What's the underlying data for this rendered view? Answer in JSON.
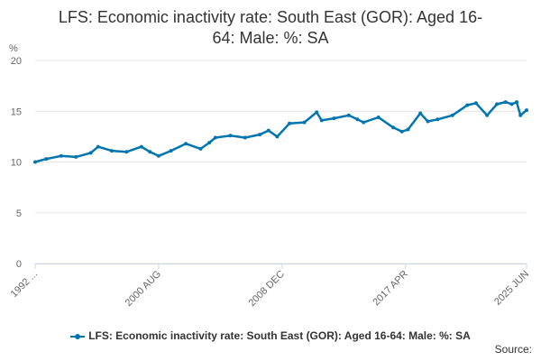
{
  "chart_data": {
    "type": "line",
    "title": "LFS: Economic inactivity rate: South East (GOR): Aged 16-64: Male: %: SA",
    "title_lines": [
      "LFS: Economic inactivity rate: South East (GOR): Aged 16-",
      "64: Male: %: SA"
    ],
    "ylabel": "%",
    "xlabel": "",
    "ylim": [
      0,
      20
    ],
    "yticks": [
      "0",
      "5",
      "10",
      "15",
      "20"
    ],
    "x_tick_labels": [
      "1992 ...",
      "2000 AUG",
      "2008 DEC",
      "2017 APR",
      "2025 JUN"
    ],
    "x_tick_dates": [
      "1992-04",
      "2000-08",
      "2008-12",
      "2017-04",
      "2025-06"
    ],
    "grid": true,
    "legend_position": "bottom",
    "color": "#0075b0",
    "series": [
      {
        "name": "LFS: Economic inactivity rate: South East (GOR): Aged 16-64: Male: %: SA",
        "x": [
          "1992-04",
          "1993-01",
          "1994-01",
          "1995-01",
          "1996-01",
          "1996-07",
          "1997-06",
          "1998-06",
          "1999-06",
          "2000-01",
          "2000-08",
          "2001-06",
          "2002-06",
          "2003-06",
          "2004-01",
          "2004-06",
          "2005-06",
          "2006-06",
          "2007-06",
          "2008-01",
          "2008-08",
          "2009-06",
          "2010-06",
          "2011-04",
          "2011-08",
          "2012-06",
          "2013-06",
          "2014-01",
          "2014-06",
          "2015-06",
          "2016-06",
          "2017-01",
          "2017-06",
          "2018-04",
          "2018-10",
          "2019-06",
          "2020-06",
          "2021-06",
          "2022-01",
          "2022-10",
          "2023-06",
          "2024-01",
          "2024-06",
          "2024-10",
          "2025-01",
          "2025-06"
        ],
        "values": [
          10.0,
          10.3,
          10.6,
          10.5,
          10.9,
          11.5,
          11.1,
          11.0,
          11.5,
          11.0,
          10.6,
          11.1,
          11.8,
          11.3,
          11.9,
          12.4,
          12.6,
          12.4,
          12.7,
          13.1,
          12.5,
          13.8,
          13.9,
          14.9,
          14.1,
          14.3,
          14.6,
          14.2,
          13.9,
          14.4,
          13.4,
          13.0,
          13.2,
          14.8,
          14.0,
          14.2,
          14.6,
          15.6,
          15.8,
          14.6,
          15.7,
          15.9,
          15.7,
          15.9,
          14.6,
          15.1
        ]
      }
    ]
  },
  "source_label": "Source:"
}
